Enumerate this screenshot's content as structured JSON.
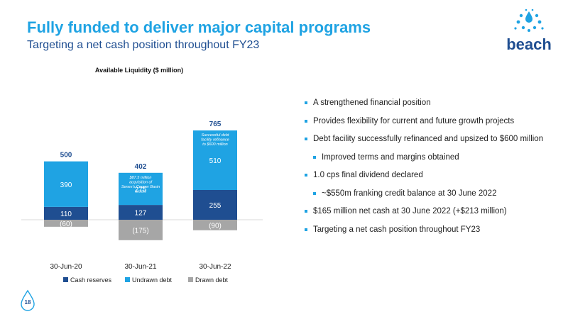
{
  "header": {
    "title": "Fully funded to deliver major capital programs",
    "subtitle": "Targeting a net cash position throughout FY23"
  },
  "logo": {
    "text": "beach",
    "icon": "water-droplets-logo-icon"
  },
  "colors": {
    "title": "#1fa3e3",
    "subtitle": "#1f4e91",
    "cash_reserves": "#1f4e91",
    "undrawn_debt": "#1fa3e3",
    "drawn_debt": "#a6a6a6",
    "bullet": "#1fa3e3"
  },
  "chart_data": {
    "type": "bar",
    "stacked": true,
    "title": "Available Liquidity ($ million)",
    "categories": [
      "30-Jun-20",
      "30-Jun-21",
      "30-Jun-22"
    ],
    "series": [
      {
        "name": "Cash reserves",
        "values": [
          110,
          127,
          255
        ],
        "labels": [
          "110",
          "127",
          "255"
        ]
      },
      {
        "name": "Undrawn debt",
        "values": [
          390,
          275,
          510
        ],
        "labels": [
          "390",
          "275",
          "510"
        ]
      },
      {
        "name": "Drawn debt",
        "values": [
          -60,
          -175,
          -90
        ],
        "labels": [
          "(60)",
          "(175)",
          "(90)"
        ]
      }
    ],
    "totals": [
      "500",
      "402",
      "765"
    ],
    "annotations": [
      "",
      "$87.5 million acquisition of Senex's Cooper Basin assets",
      "Successful debt facility refinance to $600 million"
    ],
    "legend_position": "bottom",
    "grid": false,
    "ylim": [
      -180,
      800
    ]
  },
  "bullets": [
    {
      "text": "A strengthened financial position",
      "level": 1
    },
    {
      "text": "Provides flexibility for current and future growth projects",
      "level": 1
    },
    {
      "text": "Debt facility successfully refinanced and upsized to $600 million",
      "level": 1
    },
    {
      "text": "Improved terms and margins obtained",
      "level": 2
    },
    {
      "text": "1.0 cps final dividend declared",
      "level": 1
    },
    {
      "text": "~$550m franking credit balance at 30 June 2022",
      "level": 2
    },
    {
      "text": "$165 million net cash at 30 June 2022 (+$213 million)",
      "level": 1
    },
    {
      "text": "Targeting a net cash position throughout FY23",
      "level": 1
    }
  ],
  "footer": {
    "page_number": "18"
  }
}
